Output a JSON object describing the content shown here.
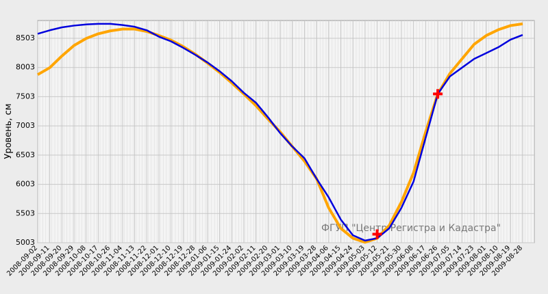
{
  "chart_data": {
    "type": "line",
    "y_label": "Уровень, см",
    "watermark": "ФГУП \"Центр Регистра и Кадастра\"",
    "categories": [
      "2008-09-02",
      "2008-09-11",
      "2008-09-20",
      "2008-09-29",
      "2008-10-08",
      "2008-10-17",
      "2008-10-26",
      "2008-11-04",
      "2008-11-13",
      "2008-11-22",
      "2008-12-01",
      "2008-12-10",
      "2008-12-19",
      "2008-12-28",
      "2009-01-06",
      "2009-01-15",
      "2009-01-24",
      "2009-02-02",
      "2009-02-11",
      "2009-02-20",
      "2009-03-01",
      "2009-03-10",
      "2009-03-19",
      "2009-03-28",
      "2009-04-06",
      "2009-04-15",
      "2009-04-24",
      "2009-05-03",
      "2009-05-12",
      "2009-05-21",
      "2009-05-30",
      "2009-06-08",
      "2009-06-17",
      "2009-06-26",
      "2009-07-05",
      "2009-07-14",
      "2009-07-23",
      "2009-08-01",
      "2009-08-10",
      "2009-08-19",
      "2009-08-28"
    ],
    "series": [
      {
        "color": "#0000dd",
        "values": [
          8580,
          8640,
          8690,
          8720,
          8740,
          8750,
          8750,
          8730,
          8700,
          8640,
          8530,
          8450,
          8340,
          8220,
          8090,
          7940,
          7770,
          7570,
          7400,
          7150,
          6880,
          6650,
          6450,
          6100,
          5780,
          5400,
          5130,
          5040,
          5080,
          5250,
          5600,
          6050,
          6800,
          7550,
          7850,
          8000,
          8150,
          8250,
          8350,
          8480,
          8560
        ]
      },
      {
        "color": "#ffa500",
        "values": [
          7880,
          8000,
          8200,
          8380,
          8500,
          8580,
          8630,
          8660,
          8660,
          8620,
          8550,
          8470,
          8360,
          8230,
          8080,
          7920,
          7740,
          7550,
          7350,
          7120,
          6900,
          6650,
          6400,
          6100,
          5600,
          5250,
          5080,
          5010,
          5080,
          5300,
          5700,
          6200,
          6900,
          7550,
          7900,
          8150,
          8400,
          8550,
          8650,
          8720,
          8750
        ]
      }
    ],
    "markers": {
      "color": "#ff0000",
      "categories": [
        "2009-05-12",
        "2009-06-26"
      ],
      "values": [
        5150,
        7550
      ]
    },
    "ylim": [
      5003,
      8807
    ],
    "yticks": [
      5003,
      5503,
      6003,
      6503,
      7003,
      7503,
      8003,
      8503
    ],
    "grid": true
  }
}
